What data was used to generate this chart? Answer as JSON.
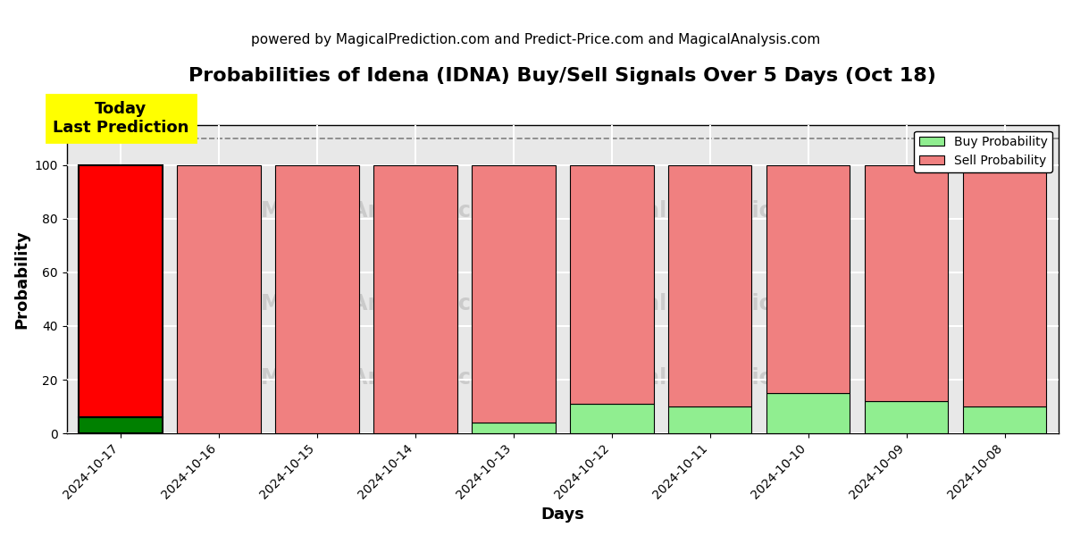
{
  "title": "Probabilities of Idena (IDNA) Buy/Sell Signals Over 5 Days (Oct 18)",
  "subtitle": "powered by MagicalPrediction.com and Predict-Price.com and MagicalAnalysis.com",
  "xlabel": "Days",
  "ylabel": "Probability",
  "dates": [
    "2024-10-17",
    "2024-10-16",
    "2024-10-15",
    "2024-10-14",
    "2024-10-13",
    "2024-10-12",
    "2024-10-11",
    "2024-10-10",
    "2024-10-09",
    "2024-10-08"
  ],
  "buy_values": [
    6,
    0,
    0,
    0,
    4,
    11,
    10,
    15,
    12,
    10
  ],
  "sell_values": [
    94,
    100,
    100,
    100,
    96,
    89,
    90,
    85,
    88,
    90
  ],
  "today_bar_buy_color": "#008000",
  "today_bar_sell_color": "#FF0000",
  "other_bar_buy_color": "#90EE90",
  "other_bar_sell_color": "#F08080",
  "today_label": "Today\nLast Prediction",
  "today_box_color": "#FFFF00",
  "dashed_line_y": 110,
  "ylim": [
    0,
    115
  ],
  "legend_buy_label": "Buy Probability",
  "legend_sell_label": "Sell Probability",
  "bg_color": "#ffffff",
  "plot_bg_color": "#e8e8e8",
  "grid_color": "#ffffff",
  "bar_edge_color": "#000000",
  "bar_width": 0.85,
  "title_fontsize": 16,
  "subtitle_fontsize": 11,
  "axis_label_fontsize": 13,
  "tick_fontsize": 10
}
